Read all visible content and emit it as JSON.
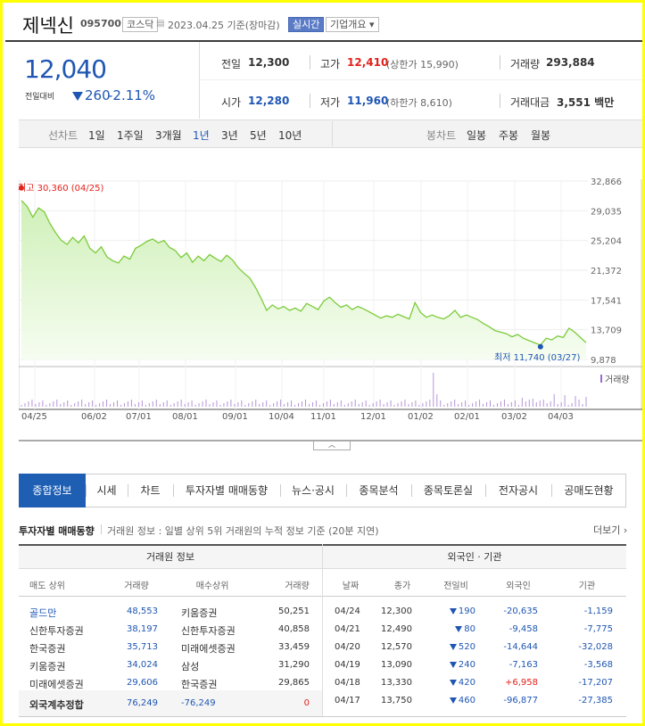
{
  "header": {
    "name": "제넥신",
    "code": "095700",
    "market": "코스닥",
    "date": "2023.04.25 기준(장마감)",
    "realtime": "실시간",
    "overview": "기업개요 ▾"
  },
  "price": {
    "current": "12,040",
    "prev_label": "전일대비",
    "change": "260",
    "change_pct": "-2.11%"
  },
  "quote": {
    "prev_close_label": "전일",
    "prev_close": "12,300",
    "high_label": "고가",
    "high": "12,410",
    "upper_limit": "(상한가 15,990)",
    "volume_label": "거래량",
    "volume": "293,884",
    "open_label": "시가",
    "open": "12,280",
    "low_label": "저가",
    "low": "11,960",
    "lower_limit": "(하한가 8,610)",
    "amount_label": "거래대금",
    "amount": "3,551",
    "amount_unit": "백만"
  },
  "periods": {
    "line_label": "선차트",
    "line_items": [
      "1일",
      "1주일",
      "3개월",
      "1년",
      "3년",
      "5년",
      "10년"
    ],
    "selected": "1년",
    "candle_label": "봉차트",
    "candle_items": [
      "일봉",
      "주봉",
      "월봉"
    ]
  },
  "chart_data": {
    "type": "area",
    "title": "",
    "xlabel": "",
    "ylabel": "",
    "ylim": [
      9878,
      32866
    ],
    "y_ticks": [
      "32,866",
      "29,035",
      "25,204",
      "21,372",
      "17,541",
      "13,709",
      "9,878"
    ],
    "x_ticks": [
      "04/25",
      "06/02",
      "07/01",
      "08/01",
      "09/01",
      "10/04",
      "11/01",
      "12/01",
      "01/02",
      "02/01",
      "03/02",
      "04/03"
    ],
    "high_annotation": "최고 30,360 (04/25)",
    "low_annotation": "최저 11,740 (03/27)",
    "volume_label": "거래량",
    "series": [
      {
        "name": "",
        "values": [
          30360,
          29600,
          28200,
          29400,
          28900,
          27400,
          26200,
          25200,
          24700,
          25600,
          24900,
          25800,
          24200,
          23600,
          24400,
          23100,
          22600,
          22300,
          23200,
          22800,
          24200,
          24600,
          25100,
          25400,
          24900,
          25200,
          24300,
          23900,
          23000,
          23600,
          22400,
          23200,
          22600,
          23400,
          22900,
          22500,
          23300,
          22700,
          21700,
          21000,
          20400,
          19200,
          17800,
          16200,
          16900,
          16400,
          16700,
          16200,
          16500,
          16100,
          17100,
          16700,
          16300,
          17400,
          17900,
          17200,
          16600,
          16900,
          16300,
          16700,
          16400,
          16000,
          15600,
          15200,
          15500,
          15300,
          15700,
          15400,
          15100,
          17200,
          15900,
          15300,
          15600,
          15300,
          15100,
          15500,
          16200,
          15300,
          15600,
          15300,
          15000,
          14500,
          14100,
          13600,
          13400,
          13200,
          12800,
          13100,
          12600,
          12300,
          12000,
          11740,
          12600,
          12400,
          12900,
          12700,
          13900,
          13400,
          12700,
          12040
        ]
      }
    ]
  },
  "tabs": {
    "items": [
      "종합정보",
      "시세",
      "차트",
      "투자자별 매매동향",
      "뉴스·공시",
      "종목분석",
      "종목토론실",
      "전자공시",
      "공매도현황"
    ],
    "active": "종합정보"
  },
  "investor": {
    "title": "투자자별 매매동향",
    "desc": "거래원 정보 : 일별 상위 5위 거래원의 누적 정보 기준 (20분 지연)",
    "more": "더보기 ›",
    "broker_header": "거래원 정보",
    "foreign_header": "외국인 · 기관",
    "broker_cols": [
      "매도 상위",
      "거래량",
      "매수상위",
      "거래량"
    ],
    "foreign_cols": [
      "날짜",
      "종가",
      "전일비",
      "외국인",
      "기관"
    ],
    "brokers": [
      {
        "sell": "골드만",
        "sell_vol": "48,553",
        "buy": "키움증권",
        "buy_vol": "50,251"
      },
      {
        "sell": "신한투자증권",
        "sell_vol": "38,197",
        "buy": "신한투자증권",
        "buy_vol": "40,858"
      },
      {
        "sell": "한국증권",
        "sell_vol": "35,713",
        "buy": "미래에셋증권",
        "buy_vol": "33,459"
      },
      {
        "sell": "키움증권",
        "sell_vol": "34,024",
        "buy": "삼성",
        "buy_vol": "31,290"
      },
      {
        "sell": "미래에셋증권",
        "sell_vol": "29,606",
        "buy": "한국증권",
        "buy_vol": "29,865"
      }
    ],
    "sum": {
      "label": "외국계추정합",
      "sell": "76,249",
      "buy": "-76,249",
      "net": "0"
    },
    "foreign": [
      {
        "date": "04/24",
        "close": "12,300",
        "chg": "190",
        "dir": "down",
        "frgn": "-20,635",
        "inst": "-1,159"
      },
      {
        "date": "04/21",
        "close": "12,490",
        "chg": "80",
        "dir": "down",
        "frgn": "-9,458",
        "inst": "-7,775"
      },
      {
        "date": "04/20",
        "close": "12,570",
        "chg": "520",
        "dir": "down",
        "frgn": "-14,644",
        "inst": "-32,028"
      },
      {
        "date": "04/19",
        "close": "13,090",
        "chg": "240",
        "dir": "down",
        "frgn": "-7,163",
        "inst": "-3,568"
      },
      {
        "date": "04/18",
        "close": "13,330",
        "chg": "420",
        "dir": "down",
        "frgn": "+6,958",
        "inst": "-17,207"
      },
      {
        "date": "04/17",
        "close": "13,750",
        "chg": "460",
        "dir": "down",
        "frgn": "-96,877",
        "inst": "-27,385"
      }
    ]
  }
}
